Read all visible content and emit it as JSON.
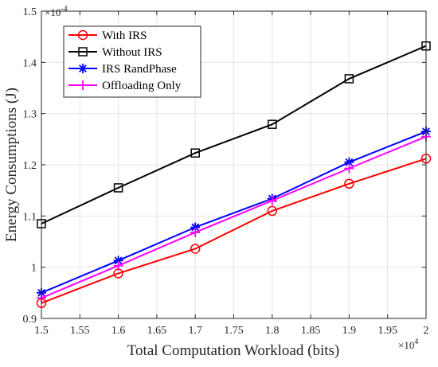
{
  "chart_data": {
    "type": "line",
    "x": [
      15000,
      16000,
      17000,
      18000,
      19000,
      20000
    ],
    "series": [
      {
        "name": "With IRS",
        "color": "#ff0000",
        "marker": "circle",
        "values": [
          9.3e-05,
          9.88e-05,
          0.0001036,
          0.000111,
          0.0001163,
          0.0001212
        ]
      },
      {
        "name": "Without IRS",
        "color": "#000000",
        "marker": "square",
        "values": [
          0.0001085,
          0.0001155,
          0.0001223,
          0.0001279,
          0.0001368,
          0.0001432
        ]
      },
      {
        "name": "IRS RandPhase",
        "color": "#0000ff",
        "marker": "asterisk",
        "values": [
          9.5e-05,
          0.0001013,
          0.0001078,
          0.0001134,
          0.0001205,
          0.0001265
        ]
      },
      {
        "name": "Offloading Only",
        "color": "#ff00ff",
        "marker": "plus",
        "values": [
          9.4e-05,
          0.0001003,
          0.0001068,
          0.000113,
          0.0001193,
          0.0001255
        ]
      }
    ],
    "xlabel": "Total Computation Workload (bits)",
    "ylabel": "Energy Consumptions (J)",
    "xlim": [
      15000,
      20000
    ],
    "ylim": [
      9e-05,
      0.00015
    ],
    "x_ticks": [
      "1.5",
      "1.55",
      "1.6",
      "1.65",
      "1.7",
      "1.75",
      "1.8",
      "1.85",
      "1.9",
      "1.95",
      "2"
    ],
    "y_ticks": [
      "0.9",
      "1",
      "1.1",
      "1.2",
      "1.3",
      "1.4",
      "1.5"
    ],
    "x_exponent": {
      "base": "×10",
      "power": "4"
    },
    "y_exponent": {
      "base": "×10",
      "power": "-4"
    },
    "grid": true,
    "legend_position": "top-left"
  }
}
